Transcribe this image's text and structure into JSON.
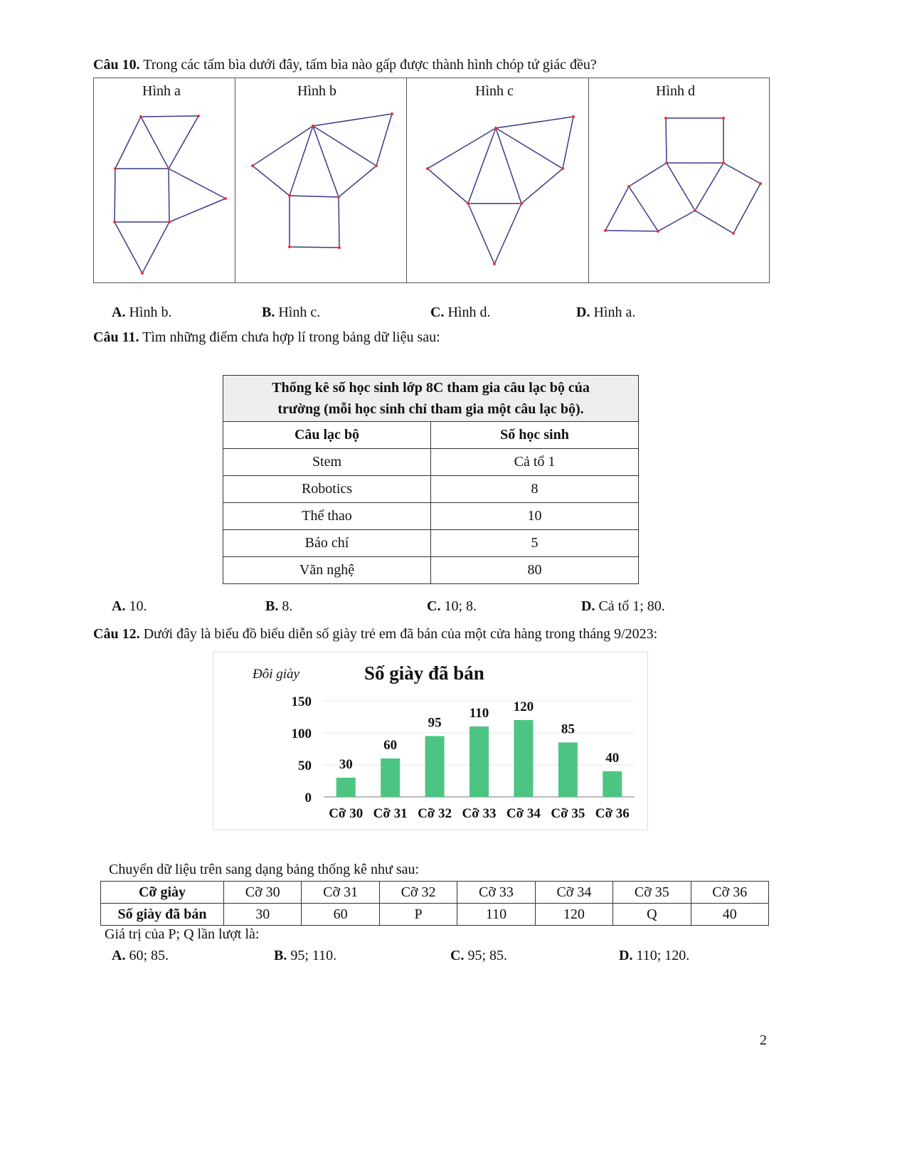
{
  "q10": {
    "label": "Câu 10.",
    "text": "Trong các tấm bìa dưới đây, tấm bìa nào gấp được thành hình chóp tứ giác đều?",
    "figures": [
      "Hình a",
      "Hình b",
      "Hình c",
      "Hình d"
    ],
    "options": [
      {
        "key": "A.",
        "text": "Hình b."
      },
      {
        "key": "B.",
        "text": "Hình c."
      },
      {
        "key": "C.",
        "text": "Hình d."
      },
      {
        "key": "D.",
        "text": "Hình a."
      }
    ]
  },
  "q11": {
    "label": "Câu 11.",
    "text": "Tìm những điểm chưa hợp lí trong bảng dữ liệu sau:",
    "table_title_1": "Thống kê số học sinh lớp 8C tham gia câu lạc bộ của",
    "table_title_2": "trường (mỗi học sinh chỉ tham gia một câu lạc bộ).",
    "headers": [
      "Câu lạc bộ",
      "Số học sinh"
    ],
    "rows": [
      [
        "Stem",
        "Cả tổ 1"
      ],
      [
        "Robotics",
        "8"
      ],
      [
        "Thể thao",
        "10"
      ],
      [
        "Báo chí",
        "5"
      ],
      [
        "Văn nghệ",
        "80"
      ]
    ],
    "options": [
      {
        "key": "A.",
        "text": "10."
      },
      {
        "key": "B.",
        "text": "8."
      },
      {
        "key": "C.",
        "text": "10; 8."
      },
      {
        "key": "D.",
        "text": "Cả tổ 1; 80."
      }
    ]
  },
  "q12": {
    "label": "Câu 12.",
    "text": "Dưới đây là biểu đồ biểu diễn số giày trẻ em đã bán của một cửa hàng trong tháng 9/2023:",
    "convert_text": "Chuyển dữ liệu trên sang dạng bảng thống kê như sau:",
    "table_header": [
      "Cỡ giày",
      "Cỡ 30",
      "Cỡ 31",
      "Cỡ 32",
      "Cỡ 33",
      "Cỡ 34",
      "Cỡ 35",
      "Cỡ 36"
    ],
    "table_row": [
      "Số giày đã bán",
      "30",
      "60",
      "P",
      "110",
      "120",
      "Q",
      "40"
    ],
    "question": "Giá trị của P; Q lần lượt là:",
    "options": [
      {
        "key": "A.",
        "text": "60; 85."
      },
      {
        "key": "B.",
        "text": "95; 110."
      },
      {
        "key": "C.",
        "text": "95; 85."
      },
      {
        "key": "D.",
        "text": "110; 120."
      }
    ]
  },
  "chart_data": {
    "type": "bar",
    "title": "Số giày đã bán",
    "ylabel": "Đôi giày",
    "xlabel": "",
    "categories": [
      "Cỡ 30",
      "Cỡ 31",
      "Cỡ 32",
      "Cỡ 33",
      "Cỡ 34",
      "Cỡ 35",
      "Cỡ 36"
    ],
    "values": [
      30,
      60,
      95,
      110,
      120,
      85,
      40
    ],
    "yticks": [
      "0",
      "50",
      "100",
      "150"
    ],
    "ylim": [
      0,
      150
    ],
    "grid": true,
    "bar_color": "#4dc582"
  },
  "page_number": "2"
}
